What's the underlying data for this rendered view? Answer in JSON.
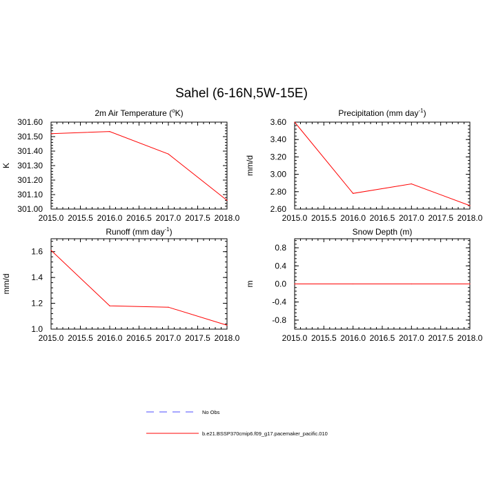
{
  "figure": {
    "title": "Sahel (6-16N,5W-15E)"
  },
  "chart_data": [
    {
      "type": "line",
      "id": "temp",
      "title_main": "2m Air Temperature (",
      "title_sup": "o",
      "title_tail": "K)",
      "ylabel": "K",
      "xlabel": "",
      "x": [
        2015,
        2016,
        2017,
        2018
      ],
      "xlim": [
        2015,
        2018
      ],
      "xticks": [
        "2015.0",
        "2015.5",
        "2016.0",
        "2016.5",
        "2017.0",
        "2017.5",
        "2018.0"
      ],
      "ylim": [
        301.0,
        301.6
      ],
      "yticks": [
        "301.00",
        "301.10",
        "301.20",
        "301.30",
        "301.40",
        "301.50",
        "301.60"
      ],
      "series": [
        {
          "name": "b.e21.BSSP370cmip6.f09_g17.pacemaker_pacific.010",
          "values": [
            301.52,
            301.535,
            301.38,
            301.06
          ]
        }
      ]
    },
    {
      "type": "line",
      "id": "precip",
      "title_main": "Precipitation (mm day",
      "title_sup": "-1",
      "title_tail": ")",
      "ylabel": "mm/d",
      "xlabel": "",
      "x": [
        2015,
        2016,
        2017,
        2018
      ],
      "xlim": [
        2015,
        2018
      ],
      "xticks": [
        "2015.0",
        "2015.5",
        "2016.0",
        "2016.5",
        "2017.0",
        "2017.5",
        "2018.0"
      ],
      "ylim": [
        2.6,
        3.6
      ],
      "yticks": [
        "2.60",
        "2.80",
        "3.00",
        "3.20",
        "3.40",
        "3.60"
      ],
      "series": [
        {
          "name": "b.e21.BSSP370cmip6.f09_g17.pacemaker_pacific.010",
          "values": [
            3.6,
            2.78,
            2.89,
            2.64
          ]
        }
      ]
    },
    {
      "type": "line",
      "id": "runoff",
      "title_main": "Runoff (mm day",
      "title_sup": "-1",
      "title_tail": ")",
      "ylabel": "mm/d",
      "xlabel": "",
      "x": [
        2015,
        2016,
        2017,
        2018
      ],
      "xlim": [
        2015,
        2018
      ],
      "xticks": [
        "2015.0",
        "2015.5",
        "2016.0",
        "2016.5",
        "2017.0",
        "2017.5",
        "2018.0"
      ],
      "ylim": [
        1.0,
        1.7
      ],
      "yticks": [
        "1.0",
        "1.2",
        "1.4",
        "1.6"
      ],
      "series": [
        {
          "name": "b.e21.BSSP370cmip6.f09_g17.pacemaker_pacific.010",
          "values": [
            1.61,
            1.18,
            1.17,
            1.03
          ]
        }
      ]
    },
    {
      "type": "line",
      "id": "snow",
      "title_main": "Snow Depth (m)",
      "title_sup": "",
      "title_tail": "",
      "ylabel": "m",
      "xlabel": "",
      "x": [
        2015,
        2016,
        2017,
        2018
      ],
      "xlim": [
        2015,
        2018
      ],
      "xticks": [
        "2015.0",
        "2015.5",
        "2016.0",
        "2016.5",
        "2017.0",
        "2017.5",
        "2018.0"
      ],
      "ylim": [
        -1.0,
        1.0
      ],
      "yticks": [
        "-0.8",
        "-0.4",
        "0.0",
        "0.4",
        "0.8"
      ],
      "series": [
        {
          "name": "b.e21.BSSP370cmip6.f09_g17.pacemaker_pacific.010",
          "values": [
            0,
            0,
            0,
            0
          ]
        }
      ]
    }
  ],
  "legend": [
    {
      "label": "No Obs",
      "color": "#4b4bff",
      "style": "dashed"
    },
    {
      "label": "b.e21.BSSP370cmip6.f09_g17.pacemaker_pacific.010",
      "color": "#ff0000",
      "style": "solid"
    }
  ],
  "colors": {
    "series": "#ff0000",
    "axis": "#000000"
  }
}
